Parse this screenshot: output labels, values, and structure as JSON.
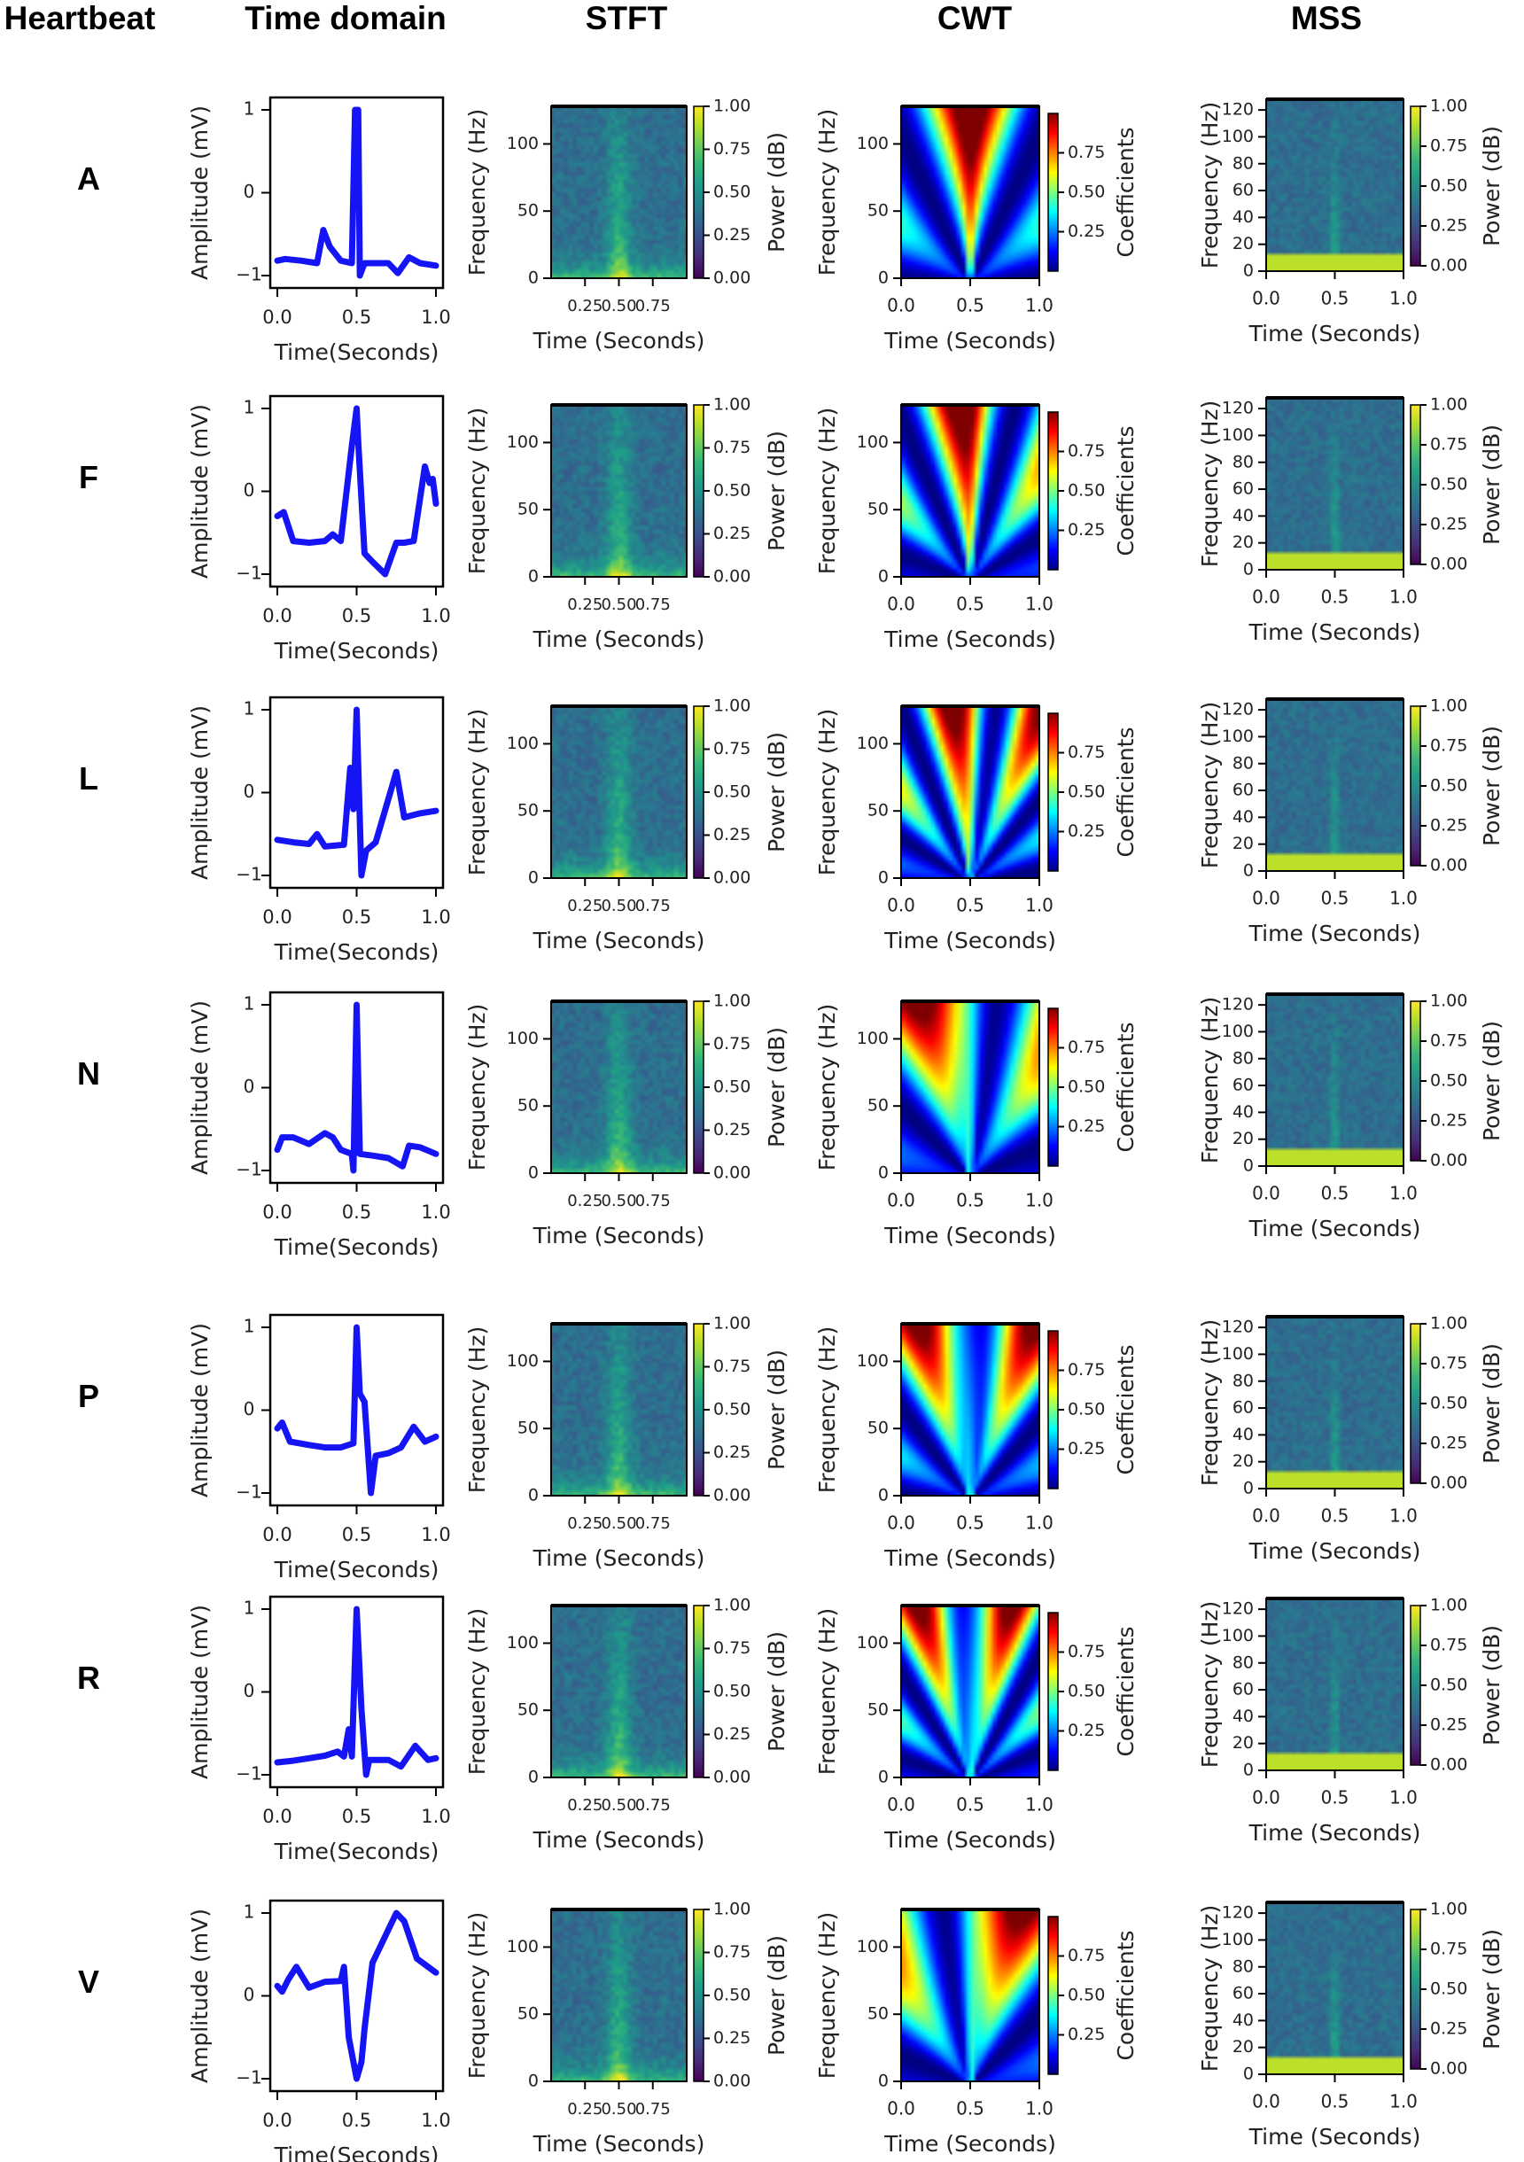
{
  "header_label": "Heartbeat",
  "heartbeats": [
    "A",
    "F",
    "L",
    "N",
    "P",
    "R",
    "V"
  ],
  "colors": {
    "ecg_line": "#1414f5",
    "axes": "#000000"
  },
  "chart_data": [
    {
      "type": "line",
      "title": "Time domain",
      "xlabel": "Time(Seconds)",
      "ylabel": "Amplitude (mV)",
      "xlim": [
        0,
        1
      ],
      "ylim": [
        -1,
        1
      ],
      "xticks": [
        "0.0",
        "0.5",
        "1.0"
      ],
      "yticks": [
        "−1",
        "0",
        "1"
      ],
      "grid": false,
      "series": [
        {
          "name": "A",
          "points": [
            [
              0,
              -0.82
            ],
            [
              0.05,
              -0.8
            ],
            [
              0.15,
              -0.82
            ],
            [
              0.25,
              -0.85
            ],
            [
              0.29,
              -0.45
            ],
            [
              0.33,
              -0.65
            ],
            [
              0.4,
              -0.82
            ],
            [
              0.47,
              -0.85
            ],
            [
              0.49,
              1.0
            ],
            [
              0.51,
              1.0
            ],
            [
              0.52,
              -1.0
            ],
            [
              0.55,
              -0.85
            ],
            [
              0.7,
              -0.85
            ],
            [
              0.76,
              -0.97
            ],
            [
              0.83,
              -0.78
            ],
            [
              0.9,
              -0.85
            ],
            [
              1.0,
              -0.88
            ]
          ]
        },
        {
          "name": "F",
          "points": [
            [
              0,
              -0.3
            ],
            [
              0.04,
              -0.25
            ],
            [
              0.1,
              -0.6
            ],
            [
              0.2,
              -0.62
            ],
            [
              0.3,
              -0.6
            ],
            [
              0.35,
              -0.52
            ],
            [
              0.4,
              -0.6
            ],
            [
              0.47,
              0.55
            ],
            [
              0.5,
              1.0
            ],
            [
              0.51,
              0.6
            ],
            [
              0.55,
              -0.75
            ],
            [
              0.6,
              -0.85
            ],
            [
              0.68,
              -1.0
            ],
            [
              0.75,
              -0.62
            ],
            [
              0.8,
              -0.62
            ],
            [
              0.86,
              -0.6
            ],
            [
              0.93,
              0.3
            ],
            [
              0.96,
              0.1
            ],
            [
              0.98,
              0.15
            ],
            [
              1.0,
              -0.15
            ]
          ]
        },
        {
          "name": "L",
          "points": [
            [
              0,
              -0.57
            ],
            [
              0.1,
              -0.6
            ],
            [
              0.2,
              -0.62
            ],
            [
              0.25,
              -0.5
            ],
            [
              0.3,
              -0.65
            ],
            [
              0.42,
              -0.63
            ],
            [
              0.46,
              0.3
            ],
            [
              0.48,
              -0.2
            ],
            [
              0.5,
              1.0
            ],
            [
              0.53,
              -1.0
            ],
            [
              0.56,
              -0.7
            ],
            [
              0.62,
              -0.6
            ],
            [
              0.75,
              0.25
            ],
            [
              0.8,
              -0.3
            ],
            [
              0.9,
              -0.25
            ],
            [
              1.0,
              -0.22
            ]
          ]
        },
        {
          "name": "N",
          "points": [
            [
              0,
              -0.75
            ],
            [
              0.03,
              -0.6
            ],
            [
              0.1,
              -0.6
            ],
            [
              0.2,
              -0.68
            ],
            [
              0.3,
              -0.55
            ],
            [
              0.35,
              -0.6
            ],
            [
              0.4,
              -0.75
            ],
            [
              0.47,
              -0.8
            ],
            [
              0.48,
              -1.0
            ],
            [
              0.5,
              1.0
            ],
            [
              0.52,
              -0.8
            ],
            [
              0.6,
              -0.82
            ],
            [
              0.7,
              -0.85
            ],
            [
              0.79,
              -0.95
            ],
            [
              0.83,
              -0.7
            ],
            [
              0.9,
              -0.72
            ],
            [
              1.0,
              -0.8
            ]
          ]
        },
        {
          "name": "P",
          "points": [
            [
              0,
              -0.22
            ],
            [
              0.03,
              -0.15
            ],
            [
              0.08,
              -0.38
            ],
            [
              0.2,
              -0.42
            ],
            [
              0.3,
              -0.45
            ],
            [
              0.4,
              -0.45
            ],
            [
              0.48,
              -0.4
            ],
            [
              0.5,
              1.0
            ],
            [
              0.52,
              0.2
            ],
            [
              0.55,
              0.1
            ],
            [
              0.59,
              -1.0
            ],
            [
              0.62,
              -0.55
            ],
            [
              0.7,
              -0.52
            ],
            [
              0.78,
              -0.45
            ],
            [
              0.86,
              -0.2
            ],
            [
              0.93,
              -0.38
            ],
            [
              1.0,
              -0.32
            ]
          ]
        },
        {
          "name": "R",
          "points": [
            [
              0,
              -0.85
            ],
            [
              0.1,
              -0.83
            ],
            [
              0.2,
              -0.8
            ],
            [
              0.3,
              -0.77
            ],
            [
              0.38,
              -0.72
            ],
            [
              0.42,
              -0.78
            ],
            [
              0.45,
              -0.45
            ],
            [
              0.47,
              -0.78
            ],
            [
              0.5,
              1.0
            ],
            [
              0.53,
              -0.2
            ],
            [
              0.56,
              -1.0
            ],
            [
              0.58,
              -0.82
            ],
            [
              0.7,
              -0.82
            ],
            [
              0.78,
              -0.9
            ],
            [
              0.87,
              -0.65
            ],
            [
              0.95,
              -0.82
            ],
            [
              1.0,
              -0.8
            ]
          ]
        },
        {
          "name": "V",
          "points": [
            [
              0,
              0.12
            ],
            [
              0.03,
              0.05
            ],
            [
              0.07,
              0.2
            ],
            [
              0.12,
              0.35
            ],
            [
              0.2,
              0.1
            ],
            [
              0.3,
              0.17
            ],
            [
              0.4,
              0.18
            ],
            [
              0.42,
              0.35
            ],
            [
              0.45,
              -0.5
            ],
            [
              0.5,
              -1.0
            ],
            [
              0.53,
              -0.8
            ],
            [
              0.55,
              -0.4
            ],
            [
              0.6,
              0.4
            ],
            [
              0.65,
              0.6
            ],
            [
              0.75,
              1.0
            ],
            [
              0.8,
              0.9
            ],
            [
              0.88,
              0.45
            ],
            [
              1.0,
              0.28
            ]
          ]
        }
      ]
    },
    {
      "type": "heatmap",
      "title": "STFT",
      "xlabel": "Time (Seconds)",
      "ylabel": "Frequency (Hz)",
      "colorbar_label": "Power (dB)",
      "colormap": "viridis",
      "xlim": [
        0,
        1
      ],
      "ylim": [
        0,
        128
      ],
      "xticks": [
        "0.25",
        "0.50",
        "0.75"
      ],
      "yticks": [
        "0",
        "50",
        "100"
      ],
      "colorbar_ticks": [
        "0.00",
        "0.25",
        "0.50",
        "0.75",
        "1.00"
      ]
    },
    {
      "type": "heatmap",
      "title": "CWT",
      "xlabel": "Time (Seconds)",
      "ylabel": "Frequency (Hz)",
      "colorbar_label": "Coefficients",
      "colormap": "jet",
      "xlim": [
        0,
        1
      ],
      "ylim": [
        0,
        128
      ],
      "xticks": [
        "0.0",
        "0.5",
        "1.0"
      ],
      "yticks": [
        "0",
        "50",
        "100"
      ],
      "colorbar_ticks": [
        "0.25",
        "0.50",
        "0.75"
      ]
    },
    {
      "type": "heatmap",
      "title": "MSS",
      "xlabel": "Time (Seconds)",
      "ylabel": "Frequency (Hz)",
      "colorbar_label": "Power (dB)",
      "colormap": "viridis",
      "xlim": [
        0,
        1
      ],
      "ylim": [
        0,
        128
      ],
      "xticks": [
        "0.0",
        "0.5",
        "1.0"
      ],
      "yticks": [
        "0",
        "20",
        "40",
        "60",
        "80",
        "100",
        "120"
      ],
      "colorbar_ticks": [
        "0.00",
        "0.25",
        "0.50",
        "0.75",
        "1.00"
      ]
    }
  ]
}
